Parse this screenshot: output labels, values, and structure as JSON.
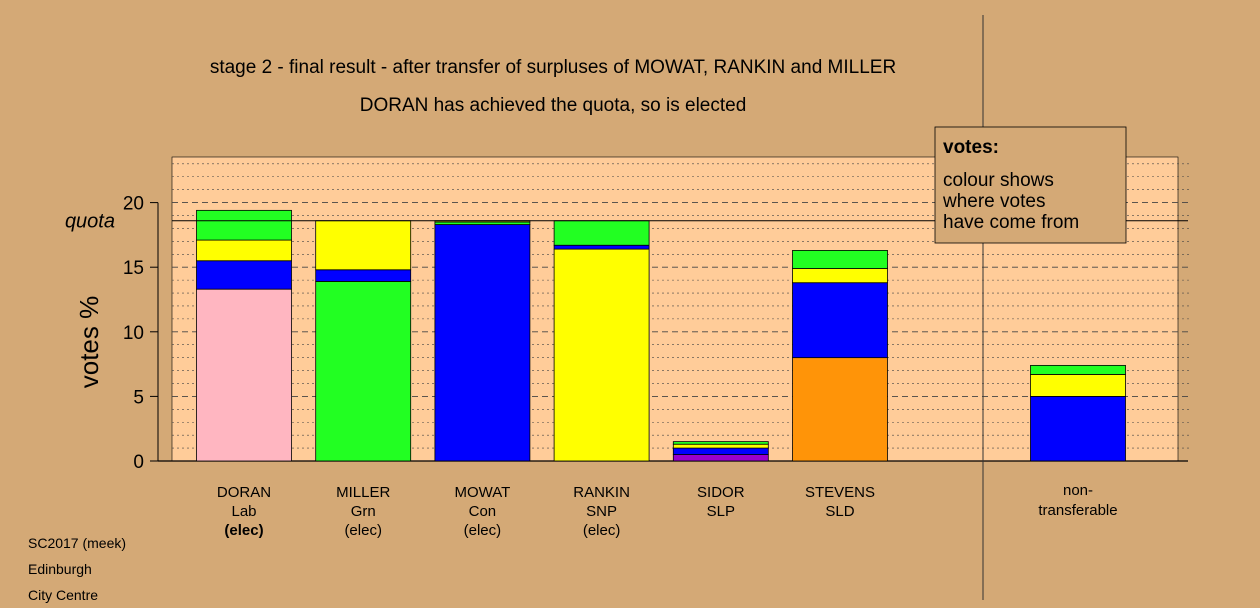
{
  "chart_data": {
    "type": "bar",
    "stacked": true,
    "title": "stage 2 - final result - after transfer of surpluses of MOWAT, RANKIN and MILLER",
    "subtitle": "DORAN has achieved the quota, so is elected",
    "ylabel": "votes %",
    "ylim": [
      0,
      23.5
    ],
    "yticks": [
      0,
      5,
      10,
      15,
      20
    ],
    "quota": 18.6,
    "quota_label": "quota",
    "colors": {
      "background": "#d4a976",
      "plot_area": "#ffcc99",
      "Lab": "#ffb6c1",
      "Grn": "#22ff22",
      "Con": "#0000ff",
      "SNP": "#ffff00",
      "SLP": "#9900cc",
      "SLD": "#ff9408"
    },
    "categories": [
      {
        "name": "DORAN",
        "party": "Lab",
        "status": "(elec)",
        "bold_status": true,
        "segments": [
          {
            "source": "Lab",
            "value": 13.3
          },
          {
            "source": "Con",
            "value": 2.2
          },
          {
            "source": "SNP",
            "value": 1.6
          },
          {
            "source": "Grn",
            "value": 2.3
          }
        ]
      },
      {
        "name": "MILLER",
        "party": "Grn",
        "status": "(elec)",
        "bold_status": false,
        "segments": [
          {
            "source": "Grn",
            "value": 13.9
          },
          {
            "source": "Con",
            "value": 0.9
          },
          {
            "source": "SNP",
            "value": 3.8
          }
        ]
      },
      {
        "name": "MOWAT",
        "party": "Con",
        "status": "(elec)",
        "bold_status": false,
        "segments": [
          {
            "source": "Con",
            "value": 18.3
          },
          {
            "source": "Grn",
            "value": 0.2
          },
          {
            "source": "SNP",
            "value": 0.1
          }
        ]
      },
      {
        "name": "RANKIN",
        "party": "SNP",
        "status": "(elec)",
        "bold_status": false,
        "segments": [
          {
            "source": "SNP",
            "value": 16.4
          },
          {
            "source": "Con",
            "value": 0.3
          },
          {
            "source": "Grn",
            "value": 1.9
          }
        ]
      },
      {
        "name": "SIDOR",
        "party": "SLP",
        "status": "",
        "bold_status": false,
        "segments": [
          {
            "source": "SLP",
            "value": 0.5
          },
          {
            "source": "Con",
            "value": 0.5
          },
          {
            "source": "SNP",
            "value": 0.3
          },
          {
            "source": "Grn",
            "value": 0.2
          }
        ]
      },
      {
        "name": "STEVENS",
        "party": "SLD",
        "status": "",
        "bold_status": false,
        "segments": [
          {
            "source": "SLD",
            "value": 8.0
          },
          {
            "source": "Con",
            "value": 5.8
          },
          {
            "source": "SNP",
            "value": 1.1
          },
          {
            "source": "Grn",
            "value": 1.4
          }
        ]
      }
    ],
    "nontransferable": {
      "label_line1": "non-",
      "label_line2": "transferable",
      "segments": [
        {
          "source": "Con",
          "value": 5.0
        },
        {
          "source": "SNP",
          "value": 1.7
        },
        {
          "source": "Grn",
          "value": 0.7
        }
      ]
    },
    "legend": {
      "placement": "top-right",
      "title": "votes:",
      "lines": [
        "colour shows",
        "where votes",
        "have come from"
      ]
    }
  },
  "footer": {
    "line1": "SC2017 (meek)",
    "line2": "Edinburgh",
    "line3": "City Centre"
  }
}
